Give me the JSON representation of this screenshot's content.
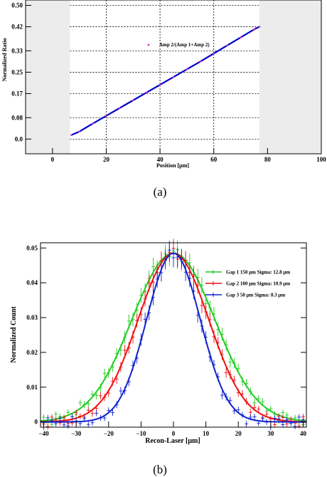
{
  "chart_data": [
    {
      "type": "line",
      "title": "",
      "xlabel": "Position [μm]",
      "ylabel": "Normalized Ratio",
      "xlim": [
        -10,
        100
      ],
      "ylim": [
        -0.055,
        0.52
      ],
      "xticks": [
        "0",
        "20",
        "40",
        "60",
        "80",
        "100"
      ],
      "yticks": [
        "0.0",
        "0.08",
        "0.17",
        "0.25",
        "0.33",
        "0.42",
        "0.50"
      ],
      "ytick_values": [
        0.0,
        0.08,
        0.17,
        0.25,
        0.33,
        0.42,
        0.5
      ],
      "xtick_values": [
        0,
        20,
        40,
        60,
        80,
        100
      ],
      "grid": true,
      "shaded_regions": [
        [
          -10,
          6.5
        ],
        [
          77,
          100
        ]
      ],
      "legend_position": "top-center",
      "series": [
        {
          "name": "Amp 2/(Amp 1+Amp 2)",
          "x": [
            7,
            10,
            15,
            20,
            25,
            30,
            35,
            40,
            45,
            50,
            55,
            60,
            65,
            70,
            75,
            77
          ],
          "values": [
            0.015,
            0.028,
            0.058,
            0.087,
            0.116,
            0.145,
            0.174,
            0.203,
            0.232,
            0.261,
            0.29,
            0.32,
            0.35,
            0.38,
            0.41,
            0.42
          ],
          "color": "#0000cc",
          "marker_color": "#cc33cc"
        }
      ],
      "caption": "(a)"
    },
    {
      "type": "line",
      "title": "",
      "xlabel": "Recon-Laser [μm]",
      "ylabel": "Normalized Count",
      "xlim": [
        -41,
        41
      ],
      "ylim": [
        -0.0015,
        0.0515
      ],
      "xticks": [
        "−40",
        "−30",
        "−20",
        "−10",
        "0",
        "10",
        "20",
        "30",
        "40"
      ],
      "xtick_values": [
        -40,
        -30,
        -20,
        -10,
        0,
        10,
        20,
        30,
        40
      ],
      "yticks": [
        "0",
        "0.01",
        "0.02",
        "0.03",
        "0.04",
        "0.05"
      ],
      "ytick_values": [
        0,
        0.01,
        0.02,
        0.03,
        0.04,
        0.05
      ],
      "grid": false,
      "legend_position": "top-right",
      "series": [
        {
          "name": "Gap 1 150 μm Sigma: 12.8 μm",
          "sigma": 12.8,
          "peak": 0.0485,
          "color": "#22cc22"
        },
        {
          "name": "Gap 2 100 μm Sigma: 10.9 μm",
          "sigma": 10.9,
          "peak": 0.0485,
          "color": "#ee1111"
        },
        {
          "name": "Gap 3 50 μm Sigma: 8.3 μm",
          "sigma": 8.3,
          "peak": 0.0485,
          "color": "#1122cc"
        }
      ],
      "caption": "(b)"
    }
  ]
}
